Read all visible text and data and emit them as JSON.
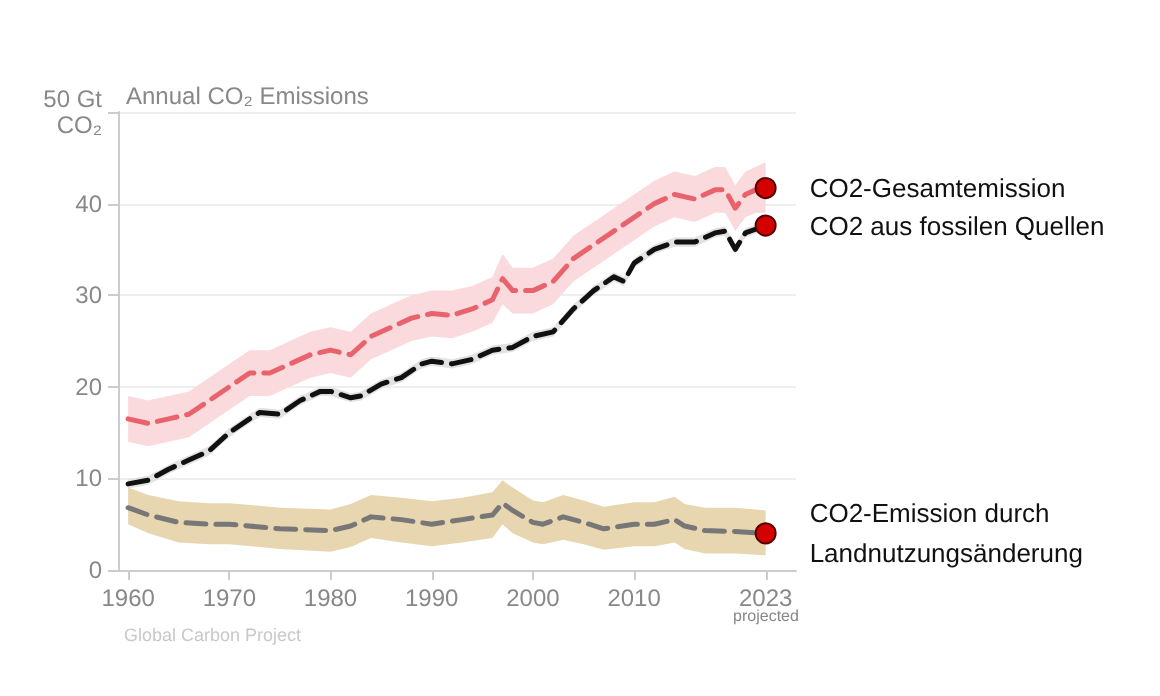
{
  "chart_data": {
    "type": "line",
    "title": "Annual CO₂ Emissions",
    "xlim": [
      1959,
      2026
    ],
    "xticks": [
      1960,
      1970,
      1980,
      1990,
      2000,
      2010,
      2023
    ],
    "ylim": [
      0,
      50
    ],
    "yticks": [
      0,
      10,
      20,
      30,
      {
        "value": 40,
        "label": "40"
      },
      {
        "value": 50,
        "label": "50 Gt\nCO₂"
      }
    ],
    "grid": "y",
    "line_style": "dashed",
    "annotations": [
      "projected",
      "Global Carbon Project"
    ],
    "series": [
      {
        "name": "CO2-Gesamtemission",
        "color": "#e8636b",
        "x": [
          1960,
          1962,
          1964,
          1966,
          1968,
          1970,
          1972,
          1974,
          1976,
          1978,
          1980,
          1982,
          1984,
          1986,
          1988,
          1990,
          1992,
          1994,
          1996,
          1997,
          1998,
          2000,
          2002,
          2004,
          2006,
          2008,
          2010,
          2012,
          2014,
          2016,
          2018,
          2019,
          2020,
          2021,
          2022,
          2023
        ],
        "values": [
          16.5,
          16,
          16.5,
          17,
          18.5,
          20,
          21.5,
          21.5,
          22.5,
          23.5,
          24,
          23.5,
          25.5,
          26.5,
          27.5,
          28,
          27.8,
          28.5,
          29.5,
          31.8,
          30.5,
          30.5,
          31.5,
          34,
          35.5,
          37,
          38.5,
          40,
          41,
          40.5,
          41.5,
          41.5,
          39.5,
          41,
          41.5,
          41.7
        ],
        "lower": [
          14,
          13.5,
          14,
          14.5,
          16,
          17.5,
          19,
          19,
          20,
          21,
          21.5,
          21,
          23,
          24,
          25,
          25.5,
          25.3,
          26,
          27,
          29,
          28,
          28,
          29,
          31.5,
          33,
          34.5,
          36,
          37.5,
          38.5,
          38,
          39,
          39,
          37,
          38.5,
          39,
          39
        ],
        "upper": [
          19,
          18.5,
          19,
          19.5,
          21,
          22.5,
          24,
          24,
          25,
          26,
          26.5,
          26,
          28,
          29,
          30,
          30.5,
          30.5,
          31,
          32,
          34.5,
          33,
          33,
          34,
          36.5,
          38,
          39.5,
          41,
          42.5,
          43.5,
          43,
          44,
          44,
          42,
          43.5,
          44,
          44.5
        ]
      },
      {
        "name": "CO2 aus fossilen Quellen",
        "color": "#111111",
        "x": [
          1960,
          1962,
          1964,
          1966,
          1968,
          1970,
          1972,
          1973,
          1975,
          1977,
          1979,
          1980,
          1982,
          1983,
          1985,
          1987,
          1989,
          1990,
          1992,
          1994,
          1996,
          1998,
          2000,
          2002,
          2004,
          2006,
          2008,
          2009,
          2010,
          2012,
          2014,
          2016,
          2018,
          2019,
          2020,
          2021,
          2022,
          2023
        ],
        "values": [
          9.4,
          9.8,
          11,
          12,
          13,
          15,
          16.5,
          17.2,
          17,
          18.5,
          19.5,
          19.5,
          18.8,
          19,
          20.3,
          21,
          22.5,
          22.8,
          22.5,
          23,
          24,
          24.3,
          25.5,
          26,
          28.5,
          30.5,
          32,
          31.5,
          33.5,
          35,
          35.8,
          35.8,
          36.8,
          37,
          35,
          36.8,
          37.2,
          37.6
        ],
        "lower": [
          8.9,
          9.3,
          10.5,
          11.5,
          12.5,
          14.5,
          16,
          16.7,
          16.5,
          18,
          19,
          19,
          18.3,
          18.5,
          19.8,
          20.5,
          22,
          22.3,
          22,
          22.5,
          23.5,
          23.8,
          25,
          25.5,
          28,
          30,
          31.5,
          31,
          33,
          34.5,
          35.3,
          35.3,
          36.3,
          36.5,
          34.5,
          36.3,
          36.7,
          37.1
        ],
        "upper": [
          9.9,
          10.3,
          11.5,
          12.5,
          13.5,
          15.5,
          17,
          17.7,
          17.5,
          19,
          20,
          20,
          19.3,
          19.5,
          20.8,
          21.5,
          23,
          23.3,
          23,
          23.5,
          24.5,
          24.8,
          26,
          26.5,
          29,
          31,
          32.5,
          32,
          34,
          35.5,
          36.3,
          36.3,
          37.3,
          37.5,
          35.5,
          37.3,
          37.7,
          38.1
        ]
      },
      {
        "name": "CO2-Emission durch Landnutzungsänderung",
        "color": "#777777",
        "x": [
          1960,
          1962,
          1965,
          1968,
          1970,
          1975,
          1980,
          1982,
          1984,
          1987,
          1990,
          1993,
          1996,
          1997,
          1998,
          2000,
          2001,
          2003,
          2005,
          2007,
          2010,
          2012,
          2014,
          2015,
          2017,
          2020,
          2023
        ],
        "values": [
          6.8,
          6,
          5.2,
          5,
          5,
          4.5,
          4.3,
          4.8,
          5.8,
          5.5,
          5,
          5.5,
          6,
          7.3,
          6.5,
          5.2,
          5,
          5.8,
          5.2,
          4.5,
          5,
          5,
          5.5,
          4.8,
          4.3,
          4.2,
          4
        ],
        "lower": [
          5,
          4,
          3,
          2.8,
          2.8,
          2.3,
          2,
          2.5,
          3.5,
          3,
          2.6,
          3,
          3.5,
          5,
          4,
          3,
          2.8,
          3.3,
          2.8,
          2.2,
          2.6,
          2.6,
          3,
          2.3,
          1.8,
          1.8,
          1.6
        ],
        "upper": [
          9,
          8.2,
          7.5,
          7.3,
          7.3,
          6.8,
          6.6,
          7.2,
          8.2,
          7.9,
          7.5,
          7.9,
          8.5,
          9.8,
          9,
          7.6,
          7.4,
          8.2,
          7.6,
          6.9,
          7.4,
          7.4,
          8,
          7.2,
          6.8,
          6.8,
          6.5
        ]
      }
    ]
  }
}
